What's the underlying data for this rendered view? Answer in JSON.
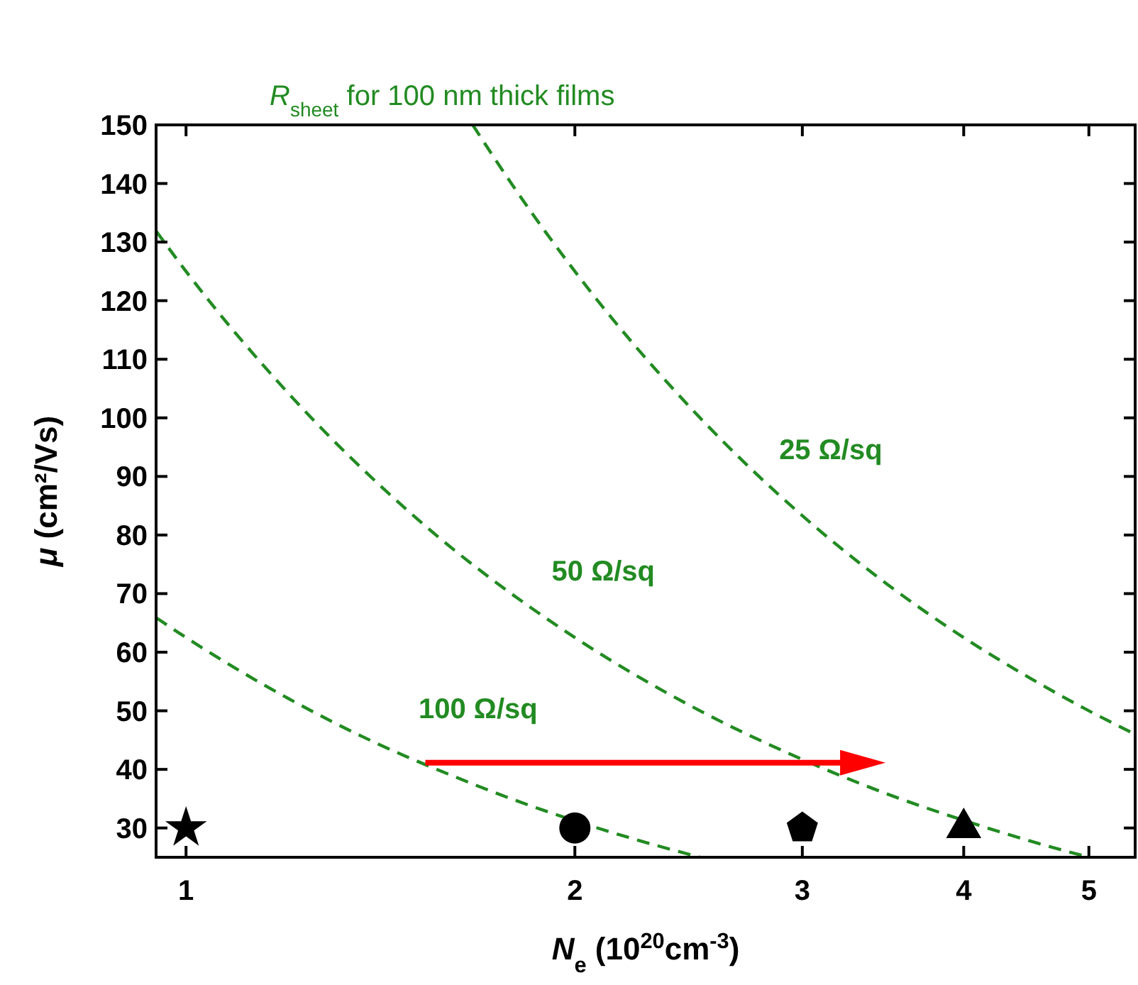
{
  "chart_data": {
    "type": "line",
    "xlabel": "N$_{e}$ (10$^{20}$cm$^{-3}$)",
    "ylabel": "μ (cm²/Vs)",
    "log": "x",
    "xlim": [
      0.948,
      5.43
    ],
    "xticks": [
      1,
      2,
      3,
      4,
      5
    ],
    "ylim": [
      25,
      150
    ],
    "yticks": [
      30,
      40,
      50,
      60,
      70,
      80,
      90,
      100,
      110,
      120,
      130,
      140,
      150
    ],
    "grid": false,
    "series": [
      {
        "name": "100 Ω/sq",
        "color": "#228b22",
        "line_style": "dashed",
        "marker": "none",
        "x": [
          0.948,
          1,
          1.2,
          1.4,
          1.6,
          1.8,
          2.2,
          2.5
        ],
        "values": [
          65.9,
          62.5,
          52.1,
          44.6,
          39.1,
          34.7,
          28.4,
          25.0
        ]
      },
      {
        "name": "50 Ω/sq",
        "color": "#228b22",
        "line_style": "dashed",
        "marker": "none",
        "x": [
          0.948,
          1,
          1.2,
          1.5,
          2,
          2.5,
          3,
          3.5,
          4,
          4.5,
          5
        ],
        "values": [
          131.9,
          125,
          104.2,
          83.3,
          62.5,
          50,
          41.7,
          35.7,
          31.3,
          27.8,
          25
        ]
      },
      {
        "name": "25 Ω/sq",
        "color": "#228b22",
        "line_style": "dashed",
        "marker": "none",
        "x": [
          1.667,
          1.8,
          2,
          2.5,
          3,
          3.5,
          4,
          4.5,
          5,
          5.43
        ],
        "values": [
          150,
          138.9,
          125,
          100,
          83.3,
          71.4,
          62.5,
          55.6,
          50,
          46.0
        ]
      },
      {
        "type": "scatter",
        "color": "#000000",
        "marker": "star",
        "x": [
          1
        ],
        "values": [
          30
        ]
      },
      {
        "type": "scatter",
        "color": "#000000",
        "marker": "circle",
        "x": [
          2
        ],
        "values": [
          30
        ]
      },
      {
        "type": "scatter",
        "color": "#000000",
        "x": [
          3
        ],
        "values": [
          30
        ]
      },
      {
        "type": "scatter",
        "color": "#000000",
        "marker": "triangle",
        "x": [
          4
        ],
        "values": [
          30
        ]
      }
    ],
    "annotations": [
      "R$_{sheet}$ for 100 nm thick films"
    ]
  }
}
